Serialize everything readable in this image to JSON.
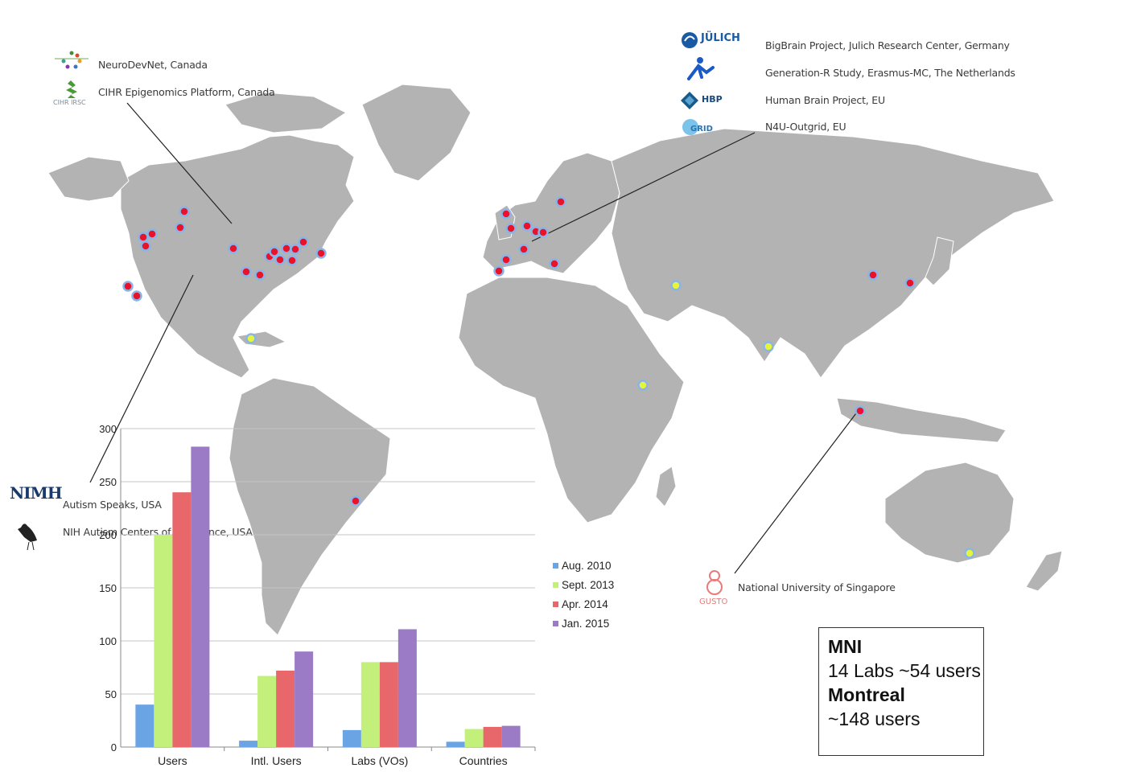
{
  "collaborators": {
    "canada": [
      {
        "name": "NeuroDevNet, Canada",
        "logo": "neurodevnet-logo"
      },
      {
        "name": "CIHR Epigenomics Platform, Canada",
        "logo": "cihr-logo",
        "logo_text": "CIHR IRSC"
      }
    ],
    "europe": [
      {
        "name": "BigBrain Project, Julich Research Center, Germany",
        "logo": "julich-logo",
        "logo_text": "JÜLICH"
      },
      {
        "name": "Generation-R Study, Erasmus-MC, The Netherlands",
        "logo": "generation-r-logo"
      },
      {
        "name": "Human Brain Project, EU",
        "logo": "hbp-logo",
        "logo_text": "HBP"
      },
      {
        "name": "N4U-Outgrid, EU",
        "logo": "outgrid-logo",
        "logo_text": "GRID"
      }
    ],
    "usa": [
      {
        "name": "Autism Speaks, USA",
        "logo": "nimh-logo",
        "logo_text": "NIMH"
      },
      {
        "name": "NIH Autism Centers of Excellence, USA",
        "logo": "ibis-logo"
      }
    ],
    "asia": [
      {
        "name": "National University of Singapore",
        "logo": "gusto-logo",
        "logo_text": "GUSTO"
      }
    ]
  },
  "mni_box": {
    "line1": "MNI",
    "line2": "14 Labs ~54 users",
    "line3": "Montreal",
    "line4": "~148 users"
  },
  "colors": {
    "map_land": "#b3b3b3",
    "map_border": "#ffffff",
    "marker_red": "#e8132b",
    "marker_yellow": "#e4f53a",
    "marker_ring": "#8ab4e6"
  },
  "chart_data": {
    "type": "bar",
    "categories": [
      "Users",
      "Intl. Users",
      "Labs (VOs)",
      "Countries"
    ],
    "series": [
      {
        "name": "Aug. 2010",
        "color": "#6aa4e4",
        "values": [
          40,
          6,
          16,
          5
        ]
      },
      {
        "name": "Sept. 2013",
        "color": "#c3ef7b",
        "values": [
          200,
          67,
          80,
          17
        ]
      },
      {
        "name": "Apr. 2014",
        "color": "#e8676a",
        "values": [
          240,
          72,
          80,
          19
        ]
      },
      {
        "name": "Jan. 2015",
        "color": "#9b7ac6",
        "values": [
          283,
          90,
          111,
          20
        ]
      }
    ],
    "yticks": [
      0,
      50,
      100,
      150,
      200,
      250,
      300
    ],
    "ylim": [
      0,
      300
    ],
    "grid": true,
    "legend": "right"
  }
}
